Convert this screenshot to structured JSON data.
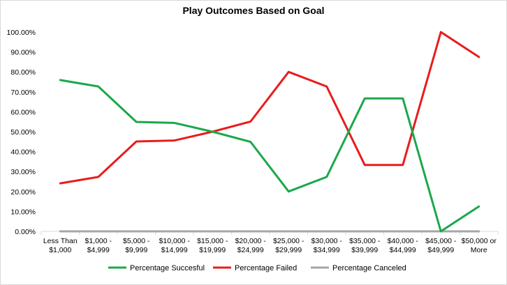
{
  "chart_data": {
    "type": "line",
    "title": "Play Outcomes Based on Goal",
    "xlabel": "",
    "ylabel": "",
    "categories": [
      [
        "Less Than",
        "$1,000"
      ],
      [
        "$1,000 -",
        "$4,999"
      ],
      [
        "$5,000 -",
        "$9,999"
      ],
      [
        "$10,000 -",
        "$14,999"
      ],
      [
        "$15,000 -",
        "$19,999"
      ],
      [
        "$20,000 -",
        "$24,999"
      ],
      [
        "$25,000 -",
        "$29,999"
      ],
      [
        "$30,000 -",
        "$34,999"
      ],
      [
        "$35,000 -",
        "$39,999"
      ],
      [
        "$40,000 -",
        "$44,999"
      ],
      [
        "$45,000 -",
        "$49,999"
      ],
      [
        "$50,000 or",
        "More"
      ]
    ],
    "ylim": [
      0,
      100
    ],
    "yticks": [
      0,
      10,
      20,
      30,
      40,
      50,
      60,
      70,
      80,
      90,
      100
    ],
    "ytick_format": "percent_2dp",
    "grid": false,
    "legend_position": "bottom",
    "series": [
      {
        "name": "Percentage Succesful",
        "color": "#1aa84a",
        "values": [
          75.9,
          72.7,
          54.9,
          54.4,
          50.0,
          44.9,
          20.0,
          27.3,
          66.7,
          66.7,
          0.0,
          12.5
        ]
      },
      {
        "name": "Percentage Failed",
        "color": "#e81c1c",
        "values": [
          24.1,
          27.3,
          45.1,
          45.6,
          50.0,
          55.1,
          80.0,
          72.7,
          33.3,
          33.3,
          100.0,
          87.5
        ]
      },
      {
        "name": "Percentage Canceled",
        "color": "#a6a6a6",
        "values": [
          0,
          0,
          0,
          0,
          0,
          0,
          0,
          0,
          0,
          0,
          0,
          0
        ]
      }
    ]
  }
}
